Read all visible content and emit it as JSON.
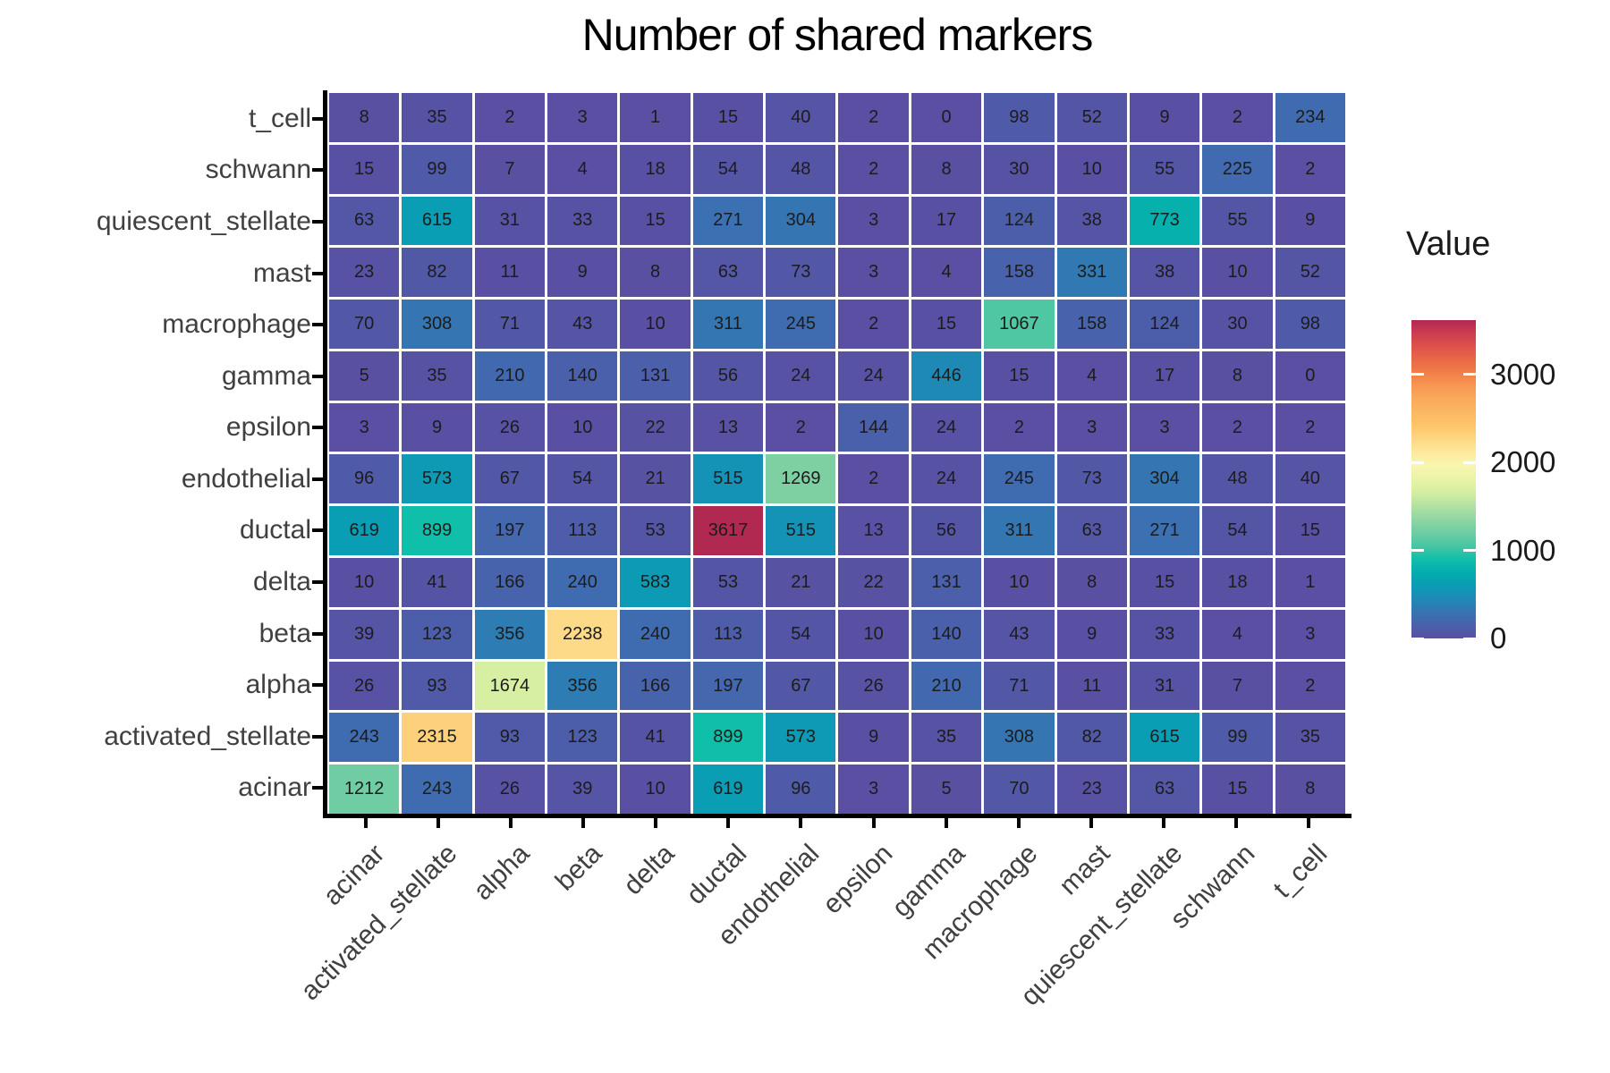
{
  "chart_data": {
    "type": "heatmap",
    "title": "Number of shared markers",
    "x_categories": [
      "acinar",
      "activated_stellate",
      "alpha",
      "beta",
      "delta",
      "ductal",
      "endothelial",
      "epsilon",
      "gamma",
      "macrophage",
      "mast",
      "quiescent_stellate",
      "schwann",
      "t_cell"
    ],
    "y_categories_top_to_bottom": [
      "t_cell",
      "schwann",
      "quiescent_stellate",
      "mast",
      "macrophage",
      "gamma",
      "epsilon",
      "endothelial",
      "ductal",
      "delta",
      "beta",
      "alpha",
      "activated_stellate",
      "acinar"
    ],
    "matrix_rows_top_to_bottom": [
      [
        8,
        35,
        2,
        3,
        1,
        15,
        40,
        2,
        0,
        98,
        52,
        9,
        2,
        234
      ],
      [
        15,
        99,
        7,
        4,
        18,
        54,
        48,
        2,
        8,
        30,
        10,
        55,
        225,
        2
      ],
      [
        63,
        615,
        31,
        33,
        15,
        271,
        304,
        3,
        17,
        124,
        38,
        773,
        55,
        9
      ],
      [
        23,
        82,
        11,
        9,
        8,
        63,
        73,
        3,
        4,
        158,
        331,
        38,
        10,
        52
      ],
      [
        70,
        308,
        71,
        43,
        10,
        311,
        245,
        2,
        15,
        1067,
        158,
        124,
        30,
        98
      ],
      [
        5,
        35,
        210,
        140,
        131,
        56,
        24,
        24,
        446,
        15,
        4,
        17,
        8,
        0
      ],
      [
        3,
        9,
        26,
        10,
        22,
        13,
        2,
        144,
        24,
        2,
        3,
        3,
        2,
        2
      ],
      [
        96,
        573,
        67,
        54,
        21,
        515,
        1269,
        2,
        24,
        245,
        73,
        304,
        48,
        40
      ],
      [
        619,
        899,
        197,
        113,
        53,
        3617,
        515,
        13,
        56,
        311,
        63,
        271,
        54,
        15
      ],
      [
        10,
        41,
        166,
        240,
        583,
        53,
        21,
        22,
        131,
        10,
        8,
        15,
        18,
        1
      ],
      [
        39,
        123,
        356,
        2238,
        240,
        113,
        54,
        10,
        140,
        43,
        9,
        33,
        4,
        3
      ],
      [
        26,
        93,
        1674,
        356,
        166,
        197,
        67,
        26,
        210,
        71,
        11,
        31,
        7,
        2
      ],
      [
        243,
        2315,
        93,
        123,
        41,
        899,
        573,
        9,
        35,
        308,
        82,
        615,
        99,
        35
      ],
      [
        1212,
        243,
        26,
        39,
        10,
        619,
        96,
        3,
        5,
        70,
        23,
        63,
        15,
        8
      ]
    ],
    "legend": {
      "title": "Value",
      "ticks": [
        0,
        1000,
        2000,
        3000
      ],
      "domain": [
        0,
        3617
      ]
    },
    "colormap": {
      "name": "spectral-reversed",
      "stops": [
        {
          "v": 0,
          "c": "#5a4fa2"
        },
        {
          "v": 250,
          "c": "#3e6db1"
        },
        {
          "v": 500,
          "c": "#1691b7"
        },
        {
          "v": 700,
          "c": "#00a7b0"
        },
        {
          "v": 900,
          "c": "#0fbfa9"
        },
        {
          "v": 1070,
          "c": "#4fc7a2"
        },
        {
          "v": 1300,
          "c": "#85d1a3"
        },
        {
          "v": 1700,
          "c": "#ddf1a2"
        },
        {
          "v": 2000,
          "c": "#fdf7b1"
        },
        {
          "v": 2400,
          "c": "#fdc76c"
        },
        {
          "v": 2800,
          "c": "#f9a256"
        },
        {
          "v": 3100,
          "c": "#ef7143"
        },
        {
          "v": 3400,
          "c": "#d84650"
        },
        {
          "v": 3700,
          "c": "#a21d51"
        }
      ]
    },
    "style": {
      "background": "#ffffff",
      "cell_text_color": "#1c1c1c",
      "axis_text_color": "#404040",
      "axis_line_color": "#000000",
      "grid_gap_color": "#ffffff"
    }
  }
}
